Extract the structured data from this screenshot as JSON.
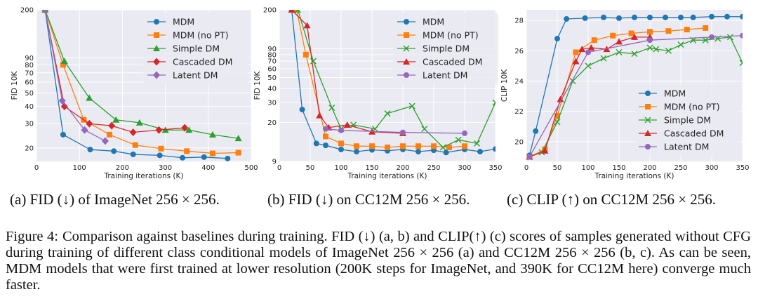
{
  "chart_data": [
    {
      "type": "line",
      "ylabel": "FID 10K",
      "xlabel": "Training iterations (K)",
      "y_scale": "log",
      "xlim": [
        0,
        500
      ],
      "ylim": [
        16,
        200
      ],
      "xticks": [
        "0",
        "100",
        "200",
        "300",
        "400",
        "500"
      ],
      "yticks": [
        {
          "value": 20,
          "label": "20"
        },
        {
          "value": 30,
          "label": "30"
        },
        {
          "value": 40,
          "label": "40"
        },
        {
          "value": 50,
          "label": "50"
        },
        {
          "value": 60,
          "label": "60"
        },
        {
          "value": 70,
          "label": "70"
        },
        {
          "value": 80,
          "label": "80"
        },
        {
          "value": 90,
          "label": "90"
        },
        {
          "value": 200,
          "label": "200"
        }
      ],
      "grid": true,
      "legend_position": "top-right",
      "series": [
        {
          "name": "MDM",
          "color": "#1f77b4",
          "marker": "circle",
          "x": [
            20,
            62,
            125,
            180,
            225,
            287,
            340,
            390,
            445
          ],
          "y": [
            200,
            25,
            19.5,
            19,
            18,
            17.7,
            17,
            17.2,
            16.8
          ]
        },
        {
          "name": "MDM (no PT)",
          "color": "#ff7f0e",
          "marker": "square",
          "x": [
            20,
            62,
            110,
            170,
            230,
            290,
            350,
            410,
            470
          ],
          "y": [
            200,
            80,
            32,
            25,
            21,
            19.8,
            19,
            18.3,
            18.5
          ]
        },
        {
          "name": "Simple DM",
          "color": "#2ca02c",
          "marker": "triangle",
          "x": [
            20,
            65,
            123,
            185,
            240,
            300,
            355,
            410,
            470
          ],
          "y": [
            200,
            85,
            46,
            32,
            30.5,
            27,
            27,
            25,
            23.5
          ]
        },
        {
          "name": "Cascaded DM",
          "color": "#d62728",
          "marker": "diamond",
          "x": [
            20,
            65,
            123,
            175,
            225,
            285,
            345
          ],
          "y": [
            200,
            40,
            30,
            29,
            26,
            27,
            28
          ]
        },
        {
          "name": "Latent DM",
          "color": "#9467bd",
          "marker": "diamond",
          "x": [
            20,
            60,
            112,
            160
          ],
          "y": [
            200,
            44,
            27,
            22.5
          ]
        }
      ]
    },
    {
      "type": "line",
      "ylabel": "FID 10K",
      "xlabel": "Training iterations (K)",
      "y_scale": "log",
      "xlim": [
        0,
        350
      ],
      "ylim": [
        9,
        200
      ],
      "xticks": [
        "0",
        "50",
        "100",
        "150",
        "200",
        "250",
        "300",
        "350"
      ],
      "yticks": [
        {
          "value": 9,
          "label": "9"
        },
        {
          "value": 20,
          "label": "20"
        },
        {
          "value": 30,
          "label": "30"
        },
        {
          "value": 40,
          "label": "40"
        },
        {
          "value": 50,
          "label": "50"
        },
        {
          "value": 60,
          "label": "60"
        },
        {
          "value": 70,
          "label": "70"
        },
        {
          "value": 80,
          "label": "80"
        },
        {
          "value": 90,
          "label": "90"
        },
        {
          "value": 200,
          "label": "200"
        }
      ],
      "grid": true,
      "legend_position": "top-right",
      "series": [
        {
          "name": "MDM",
          "color": "#1f77b4",
          "marker": "circle",
          "x": [
            20,
            37,
            60,
            75,
            100,
            125,
            150,
            175,
            200,
            225,
            250,
            270,
            300,
            325,
            350
          ],
          "y": [
            200,
            26,
            13,
            12.5,
            11.5,
            11,
            11.4,
            11.2,
            11.5,
            11,
            11.3,
            10.8,
            11.5,
            11,
            11.6
          ]
        },
        {
          "name": "MDM (no PT)",
          "color": "#ff7f0e",
          "marker": "square",
          "x": [
            28,
            43,
            75,
            100,
            125,
            150,
            175,
            200,
            225,
            250,
            275,
            300
          ],
          "y": [
            200,
            80,
            15,
            13,
            12.3,
            12.3,
            12,
            12.3,
            12.3,
            12.3,
            12,
            12.3
          ]
        },
        {
          "name": "Simple DM",
          "color": "#2ca02c",
          "marker": "x",
          "x": [
            30,
            55,
            85,
            100,
            120,
            155,
            175,
            215,
            235,
            265,
            290,
            320,
            350
          ],
          "y": [
            200,
            70,
            27,
            17.5,
            19,
            17.5,
            24,
            28,
            17.5,
            12,
            14,
            13,
            30
          ]
        },
        {
          "name": "Cascaded DM",
          "color": "#d62728",
          "marker": "triangle",
          "x": [
            20,
            45,
            65,
            80,
            110,
            150,
            200
          ],
          "y": [
            200,
            145,
            23,
            18,
            19,
            16.5,
            16
          ]
        },
        {
          "name": "Latent DM",
          "color": "#9467bd",
          "marker": "circle",
          "x": [
            75,
            100,
            200,
            300
          ],
          "y": [
            17.5,
            17,
            16.3,
            16
          ]
        }
      ]
    },
    {
      "type": "line",
      "ylabel": "CLIP 10K",
      "xlabel": "Training iterations (K)",
      "y_scale": "linear",
      "xlim": [
        0,
        350
      ],
      "ylim": [
        18.7,
        28.7
      ],
      "xticks": [
        "0",
        "50",
        "100",
        "150",
        "200",
        "250",
        "300",
        "350"
      ],
      "yticks": [
        {
          "value": 20,
          "label": "20"
        },
        {
          "value": 22,
          "label": "22"
        },
        {
          "value": 24,
          "label": "24"
        },
        {
          "value": 26,
          "label": "26"
        },
        {
          "value": 28,
          "label": "28"
        }
      ],
      "grid": true,
      "legend_position": "bottom-right",
      "series": [
        {
          "name": "MDM",
          "color": "#1f77b4",
          "marker": "circle",
          "x": [
            5,
            15,
            50,
            65,
            95,
            125,
            150,
            175,
            200,
            225,
            250,
            270,
            300,
            325,
            350
          ],
          "y": [
            19.1,
            20.7,
            26.8,
            28.1,
            28.15,
            28.2,
            28.15,
            28.2,
            28.2,
            28.2,
            28.2,
            28.2,
            28.25,
            28.25,
            28.25
          ]
        },
        {
          "name": "MDM (no PT)",
          "color": "#ff7f0e",
          "marker": "square",
          "x": [
            5,
            30,
            50,
            80,
            110,
            140,
            170,
            200,
            230,
            260,
            290
          ],
          "y": [
            19.0,
            19.5,
            21.7,
            25.9,
            26.7,
            27.0,
            27.15,
            27.25,
            27.3,
            27.4,
            27.5
          ]
        },
        {
          "name": "Simple DM",
          "color": "#2ca02c",
          "marker": "x",
          "x": [
            5,
            25,
            50,
            75,
            100,
            125,
            150,
            175,
            200,
            210,
            230,
            250,
            270,
            290,
            310,
            330,
            350
          ],
          "y": [
            19.0,
            19.3,
            21.3,
            24.0,
            25.0,
            25.5,
            25.9,
            25.8,
            26.2,
            26.1,
            26.0,
            26.4,
            26.7,
            26.7,
            26.8,
            26.9,
            25.2
          ]
        },
        {
          "name": "Cascaded DM",
          "color": "#d62728",
          "marker": "triangle",
          "x": [
            5,
            30,
            55,
            80,
            90,
            105,
            130,
            150,
            175,
            200
          ],
          "y": [
            19.0,
            19.4,
            22.8,
            25.3,
            26.1,
            26.2,
            26.1,
            26.6,
            26.9,
            26.9
          ]
        },
        {
          "name": "Latent DM",
          "color": "#9467bd",
          "marker": "circle",
          "x": [
            5,
            100,
            200,
            300,
            350
          ],
          "y": [
            19.0,
            25.9,
            26.7,
            26.9,
            27.0
          ]
        }
      ]
    }
  ],
  "subcaptions": {
    "a": "(a) FID (↓) of ImageNet 256 × 256.",
    "b": "(b) FID (↓) on CC12M 256 × 256.",
    "c": "(c) CLIP (↑) on CC12M 256 × 256."
  },
  "caption": {
    "label": "Figure 4:",
    "text": "Comparison against baselines during training. FID (↓) (a, b) and CLIP(↑) (c) scores of samples generated without CFG during training of different class conditional models of ImageNet 256 × 256 (a) and CC12M 256 × 256 (b, c). As can be seen, MDM models that were first trained at lower resolution (200K steps for ImageNet, and 390K for CC12M here) converge much faster."
  }
}
